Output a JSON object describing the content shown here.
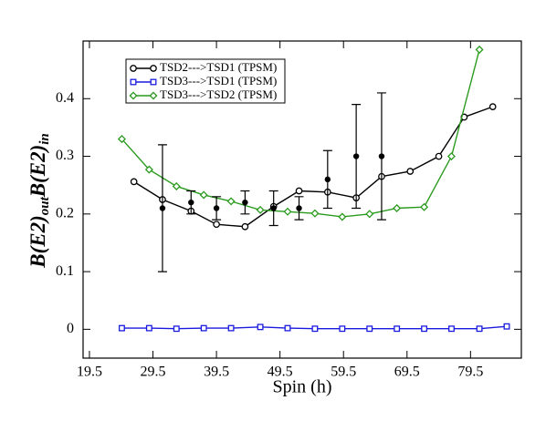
{
  "chart_data": {
    "type": "line",
    "xlabel": "Spin (h)",
    "ylabel": [
      "B(E2)",
      "out",
      "B(E2)",
      "in"
    ],
    "xlim": [
      18.5,
      87.5
    ],
    "ylim": [
      -0.05,
      0.5
    ],
    "xticks": [
      19.5,
      29.5,
      39.5,
      49.5,
      59.5,
      69.5,
      79.5
    ],
    "yticks": [
      0,
      0.1,
      0.2,
      0.3,
      0.4
    ],
    "legend": "upper left",
    "series": [
      {
        "name": "TSD2--->TSD1 (TPSM)",
        "color": "#000000",
        "marker": "circle",
        "x": [
          26.5,
          31,
          35.5,
          39.5,
          44,
          48.5,
          52.5,
          57,
          61.5,
          65.5,
          70,
          74.5,
          78.5,
          83
        ],
        "values": [
          0.256,
          0.225,
          0.205,
          0.182,
          0.178,
          0.213,
          0.24,
          0.238,
          0.228,
          0.265,
          0.274,
          0.3,
          0.368,
          0.386
        ]
      },
      {
        "name": "TSD3--->TSD1 (TPSM)",
        "color": "#1a1adf",
        "marker": "square",
        "x": [
          24.6,
          28.9,
          33.2,
          37.5,
          41.8,
          46.4,
          50.7,
          55,
          59.3,
          63.6,
          67.9,
          72.2,
          76.5,
          80.9,
          85.2
        ],
        "values": [
          0.002,
          0.002,
          0.001,
          0.002,
          0.002,
          0.004,
          0.002,
          0.001,
          0.001,
          0.001,
          0.001,
          0.001,
          0.001,
          0.001,
          0.005
        ]
      },
      {
        "name": "TSD3--->TSD2 (TPSM)",
        "color": "#2a9a1e",
        "marker": "diamond",
        "x": [
          24.6,
          28.9,
          33.2,
          37.5,
          41.8,
          46.4,
          50.7,
          55,
          59.3,
          63.6,
          67.9,
          72.2,
          76.5,
          80.9
        ],
        "values": [
          0.33,
          0.277,
          0.248,
          0.233,
          0.222,
          0.207,
          0.204,
          0.201,
          0.195,
          0.2,
          0.21,
          0.212,
          0.3,
          0.485
        ]
      }
    ],
    "errorbars": {
      "color": "#000000",
      "x": [
        31,
        35.5,
        39.5,
        44,
        48.5,
        52.5,
        57,
        61.5,
        65.5
      ],
      "values": [
        0.21,
        0.22,
        0.21,
        0.22,
        0.21,
        0.21,
        0.26,
        0.3,
        0.3
      ],
      "errors": [
        0.11,
        0.02,
        0.02,
        0.02,
        0.03,
        0.02,
        0.05,
        0.09,
        0.11
      ]
    }
  }
}
